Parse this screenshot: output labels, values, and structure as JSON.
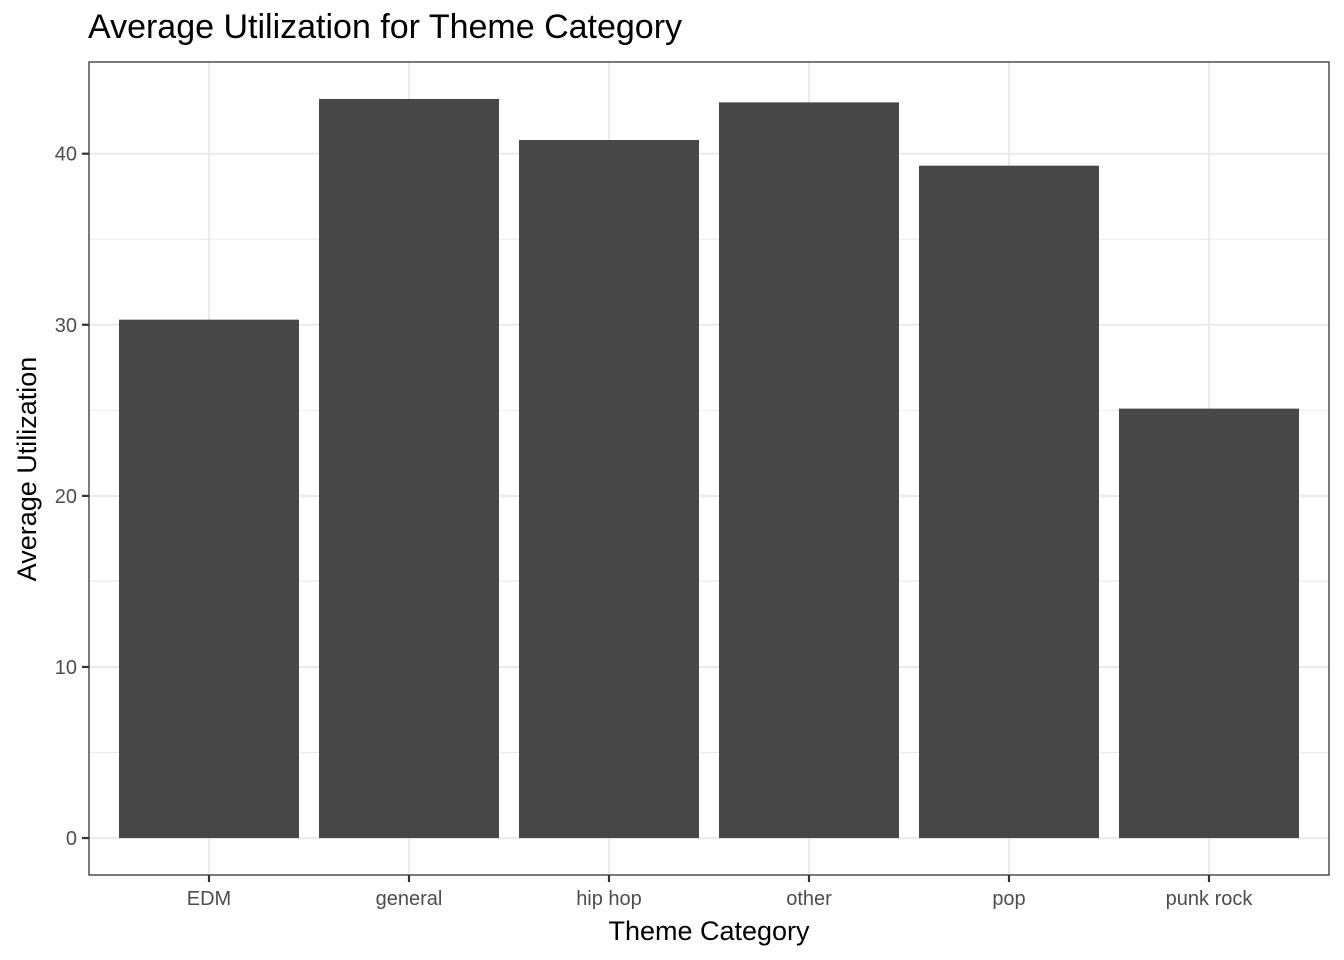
{
  "chart_data": {
    "type": "bar",
    "title": "Average Utilization for Theme Category",
    "xlabel": "Theme Category",
    "ylabel": "Average Utilization",
    "categories": [
      "EDM",
      "general",
      "hip hop",
      "other",
      "pop",
      "punk rock"
    ],
    "values": [
      30.3,
      43.2,
      40.8,
      43.0,
      39.3,
      25.1
    ],
    "ylim": [
      -2.16,
      45.36
    ],
    "yticks": [
      0,
      10,
      20,
      30,
      40
    ],
    "ytick_labels": [
      "0",
      "10",
      "20",
      "30",
      "40"
    ],
    "grid": true,
    "legend": "none",
    "colors": {
      "bar": "#474747",
      "grid": "#ebebeb",
      "panel_border": "#333333",
      "background": "#ffffff"
    }
  }
}
